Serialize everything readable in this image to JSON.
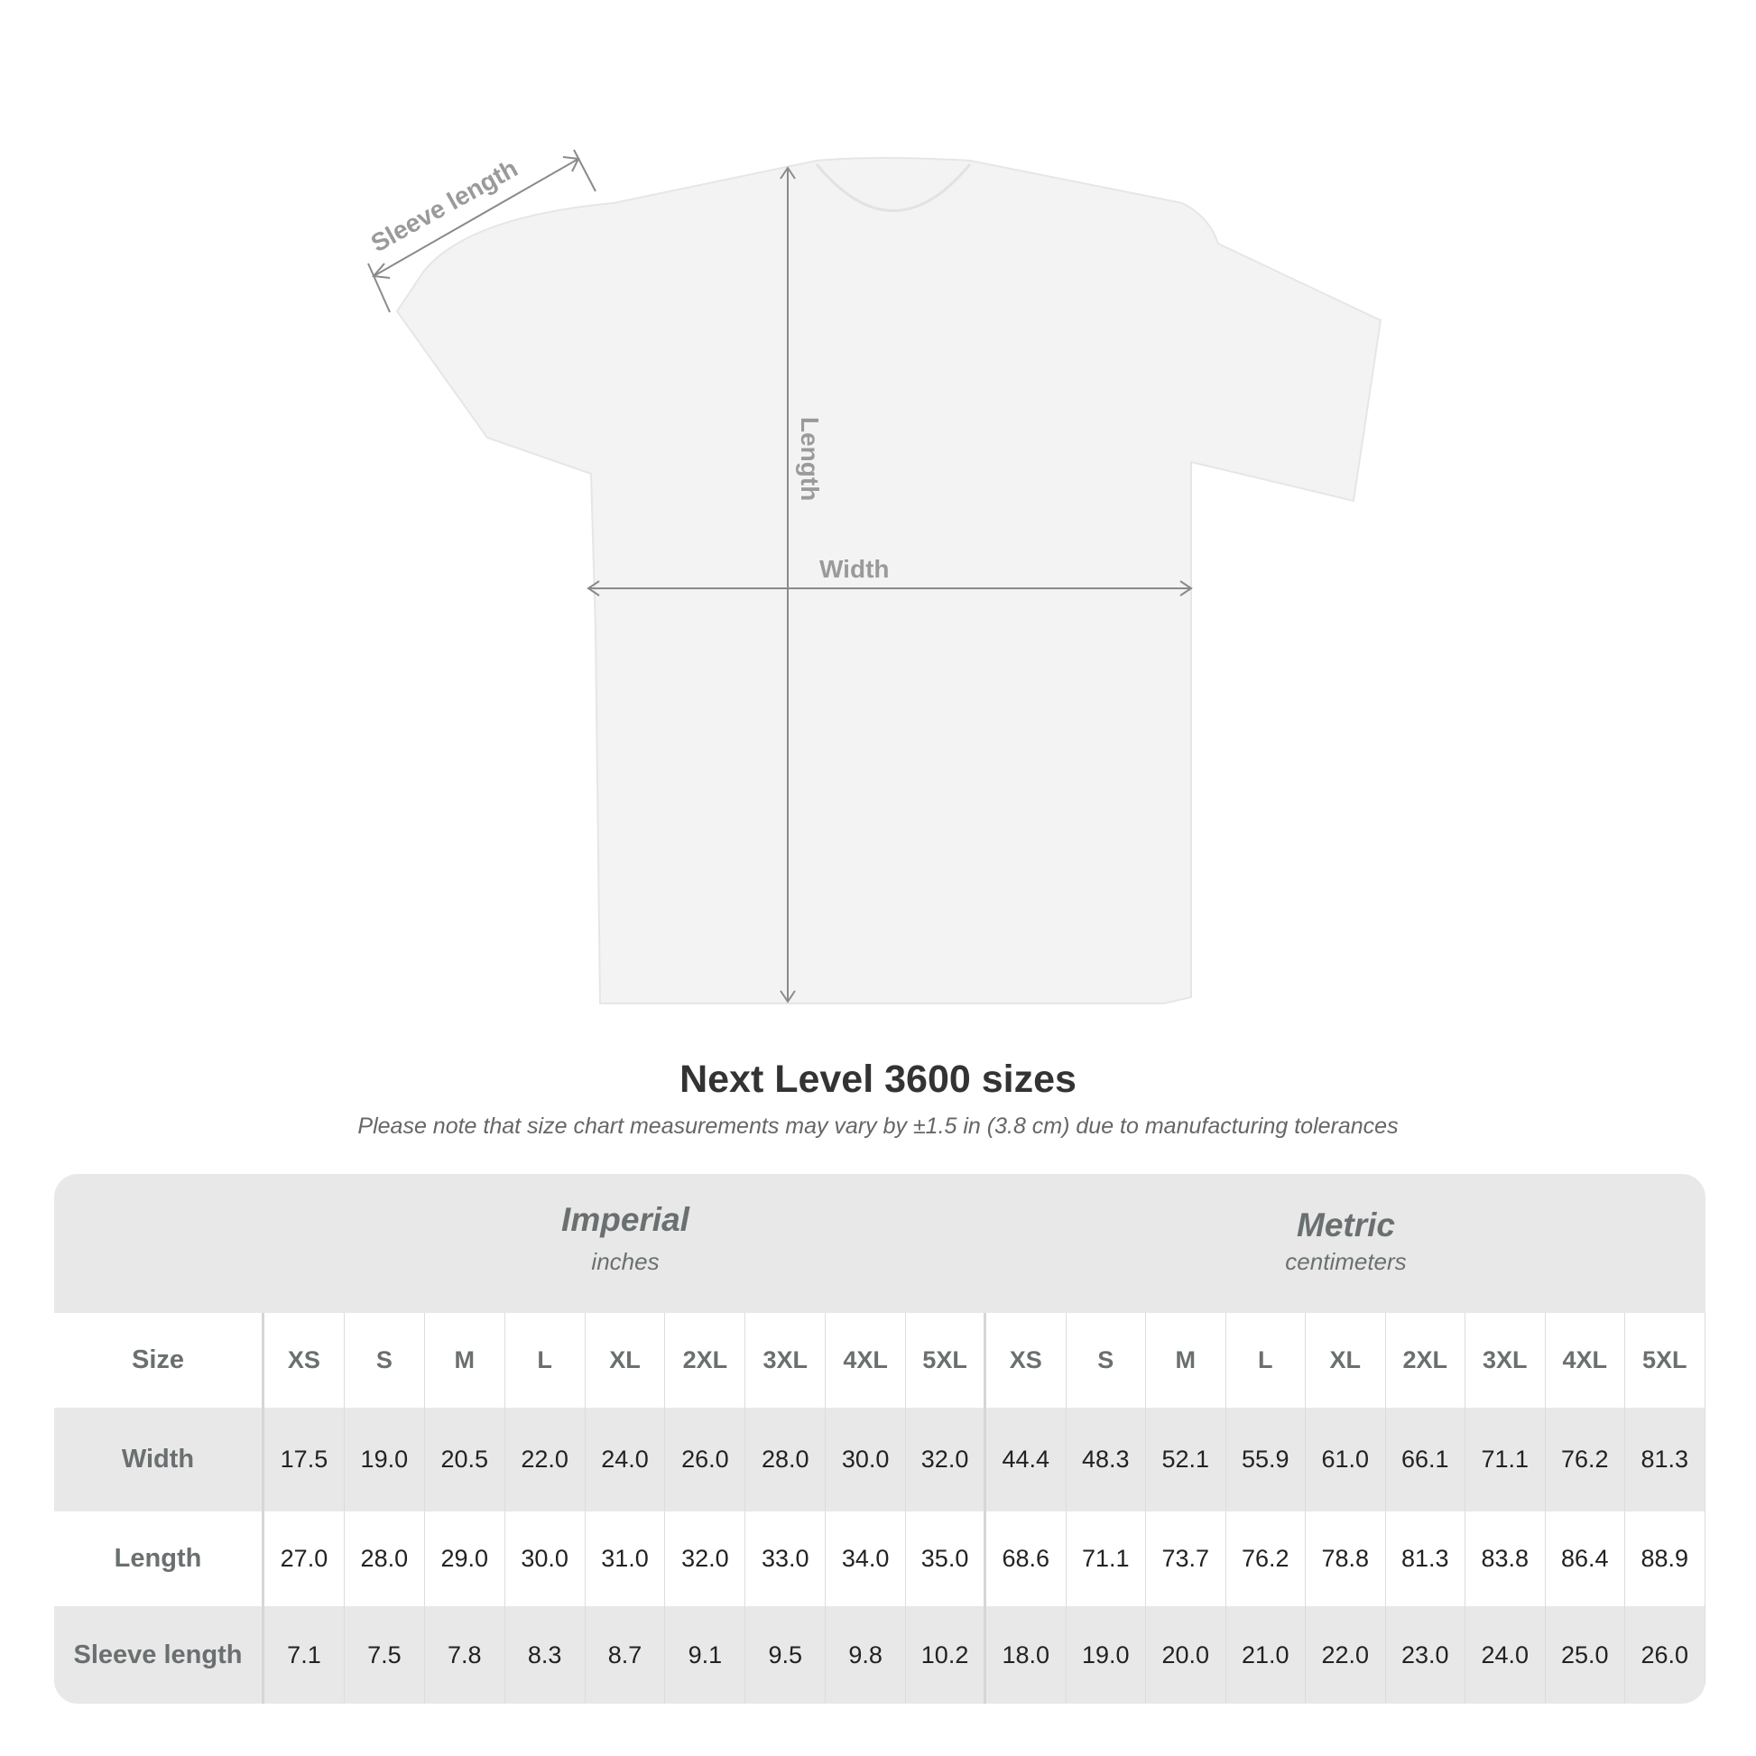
{
  "diagram": {
    "labels": {
      "sleeve": "Sleeve length",
      "length": "Length",
      "width": "Width"
    },
    "garment_color": "#f3f3f3",
    "arrow_color": "#8a8a8a"
  },
  "title": "Next Level 3600 sizes",
  "note": "Please note that size chart measurements may vary by ±1.5 in (3.8 cm) due to manufacturing tolerances",
  "table": {
    "imperial": {
      "title": "Imperial",
      "unit": "inches"
    },
    "metric": {
      "title": "Metric",
      "unit": "centimeters"
    },
    "size_label": "Size",
    "sizes": [
      "XS",
      "S",
      "M",
      "L",
      "XL",
      "2XL",
      "3XL",
      "4XL",
      "5XL"
    ],
    "rows": [
      {
        "label": "Width",
        "imperial": [
          "17.5",
          "19.0",
          "20.5",
          "22.0",
          "24.0",
          "26.0",
          "28.0",
          "30.0",
          "32.0"
        ],
        "metric": [
          "44.4",
          "48.3",
          "52.1",
          "55.9",
          "61.0",
          "66.1",
          "71.1",
          "76.2",
          "81.3"
        ]
      },
      {
        "label": "Length",
        "imperial": [
          "27.0",
          "28.0",
          "29.0",
          "30.0",
          "31.0",
          "32.0",
          "33.0",
          "34.0",
          "35.0"
        ],
        "metric": [
          "68.6",
          "71.1",
          "73.7",
          "76.2",
          "78.8",
          "81.3",
          "83.8",
          "86.4",
          "88.9"
        ]
      },
      {
        "label": "Sleeve length",
        "imperial": [
          "7.1",
          "7.5",
          "7.8",
          "8.3",
          "8.7",
          "9.1",
          "9.5",
          "9.8",
          "10.2"
        ],
        "metric": [
          "18.0",
          "19.0",
          "20.0",
          "21.0",
          "22.0",
          "23.0",
          "24.0",
          "25.0",
          "26.0"
        ]
      }
    ]
  }
}
